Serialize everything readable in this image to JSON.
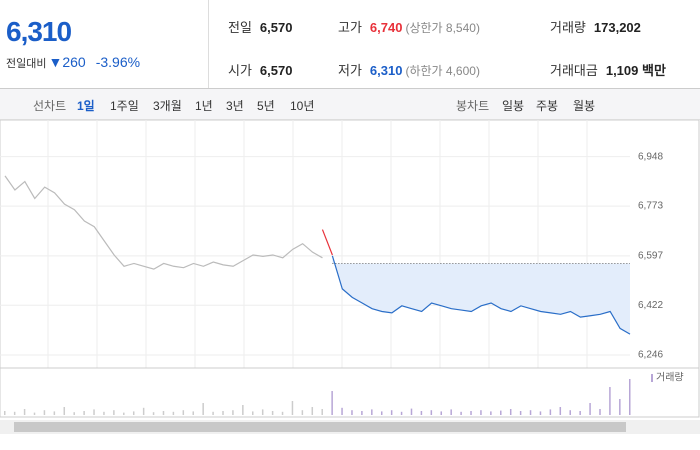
{
  "header": {
    "price": "6,310",
    "change_label": "전일대비",
    "change": "260",
    "change_pct": "-3.96%"
  },
  "stats": [
    [
      {
        "label": "전일",
        "value": "6,570"
      },
      {
        "label": "고가",
        "value": "6,740",
        "sub": "(상한가 8,540)"
      },
      {
        "label": "거래량",
        "value": "173,202"
      }
    ],
    [
      {
        "label": "시가",
        "value": "6,570"
      },
      {
        "label": "저가",
        "value": "6,310",
        "sub": "(하한가 4,600)"
      },
      {
        "label": "거래대금",
        "value": "1,109 백만"
      }
    ]
  ],
  "tabs": {
    "line_label": "선차트",
    "line": [
      "1일",
      "1주일",
      "3개월",
      "1년",
      "3년",
      "5년",
      "10년"
    ],
    "candle_label": "봉차트",
    "candle": [
      "일봉",
      "주봉",
      "월봉"
    ]
  },
  "chart_data": {
    "type": "line",
    "ylim": [
      6200,
      7060
    ],
    "yticks": [
      {
        "value": 6948,
        "label": "6,948"
      },
      {
        "value": 6773,
        "label": "6,773"
      },
      {
        "value": 6597,
        "label": "6,597"
      },
      {
        "value": 6422,
        "label": "6,422"
      },
      {
        "value": 6246,
        "label": "6,246"
      }
    ],
    "reference": 6570,
    "series": [
      {
        "color": "#bbbbbb",
        "values": [
          6880,
          6830,
          6860,
          6800,
          6840,
          6820,
          6780,
          6760,
          6720,
          6700,
          6650,
          6600,
          6560,
          6570,
          6560,
          6550,
          6570,
          6560,
          6555,
          6570,
          6560,
          6575,
          6565,
          6560,
          6580,
          6600,
          6595,
          6600,
          6590,
          6620,
          6640,
          6610,
          6590,
          null,
          null,
          null,
          null,
          null,
          null,
          null,
          null,
          null,
          null,
          null,
          null,
          null,
          null,
          null,
          null,
          null,
          null,
          null,
          null,
          null,
          null,
          null,
          null,
          null,
          null,
          null,
          null,
          null,
          null,
          null
        ]
      },
      {
        "color": "#e8313a",
        "values": [
          null,
          null,
          null,
          null,
          null,
          null,
          null,
          null,
          null,
          null,
          null,
          null,
          null,
          null,
          null,
          null,
          null,
          null,
          null,
          null,
          null,
          null,
          null,
          null,
          null,
          null,
          null,
          null,
          null,
          null,
          null,
          null,
          6690,
          6600,
          null,
          null,
          null,
          null,
          null,
          null,
          null,
          null,
          null,
          null,
          null,
          null,
          null,
          null,
          null,
          null,
          null,
          null,
          null,
          null,
          null,
          null,
          null,
          null,
          null,
          null,
          null,
          null,
          null,
          null
        ]
      },
      {
        "color": "#2a6ec8",
        "values": [
          null,
          null,
          null,
          null,
          null,
          null,
          null,
          null,
          null,
          null,
          null,
          null,
          null,
          null,
          null,
          null,
          null,
          null,
          null,
          null,
          null,
          null,
          null,
          null,
          null,
          null,
          null,
          null,
          null,
          null,
          null,
          null,
          null,
          6597,
          6480,
          6450,
          6430,
          6410,
          6400,
          6395,
          6420,
          6410,
          6400,
          6430,
          6420,
          6410,
          6405,
          6400,
          6420,
          6430,
          6410,
          6400,
          6420,
          6410,
          6400,
          6395,
          6390,
          6400,
          6380,
          6385,
          6390,
          6400,
          6340,
          6320
        ]
      }
    ],
    "volume": {
      "name": "거래량",
      "color": "#b7a6d6",
      "lim": [
        0,
        100
      ],
      "values": [
        10,
        8,
        15,
        6,
        12,
        9,
        20,
        7,
        10,
        14,
        8,
        12,
        6,
        9,
        18,
        7,
        10,
        8,
        12,
        9,
        30,
        8,
        10,
        12,
        25,
        9,
        14,
        10,
        8,
        35,
        12,
        20,
        15,
        60,
        18,
        12,
        10,
        14,
        9,
        12,
        8,
        16,
        10,
        12,
        9,
        14,
        8,
        10,
        12,
        9,
        11,
        15,
        10,
        12,
        9,
        14,
        20,
        12,
        10,
        30,
        15,
        70,
        40,
        90
      ]
    }
  }
}
